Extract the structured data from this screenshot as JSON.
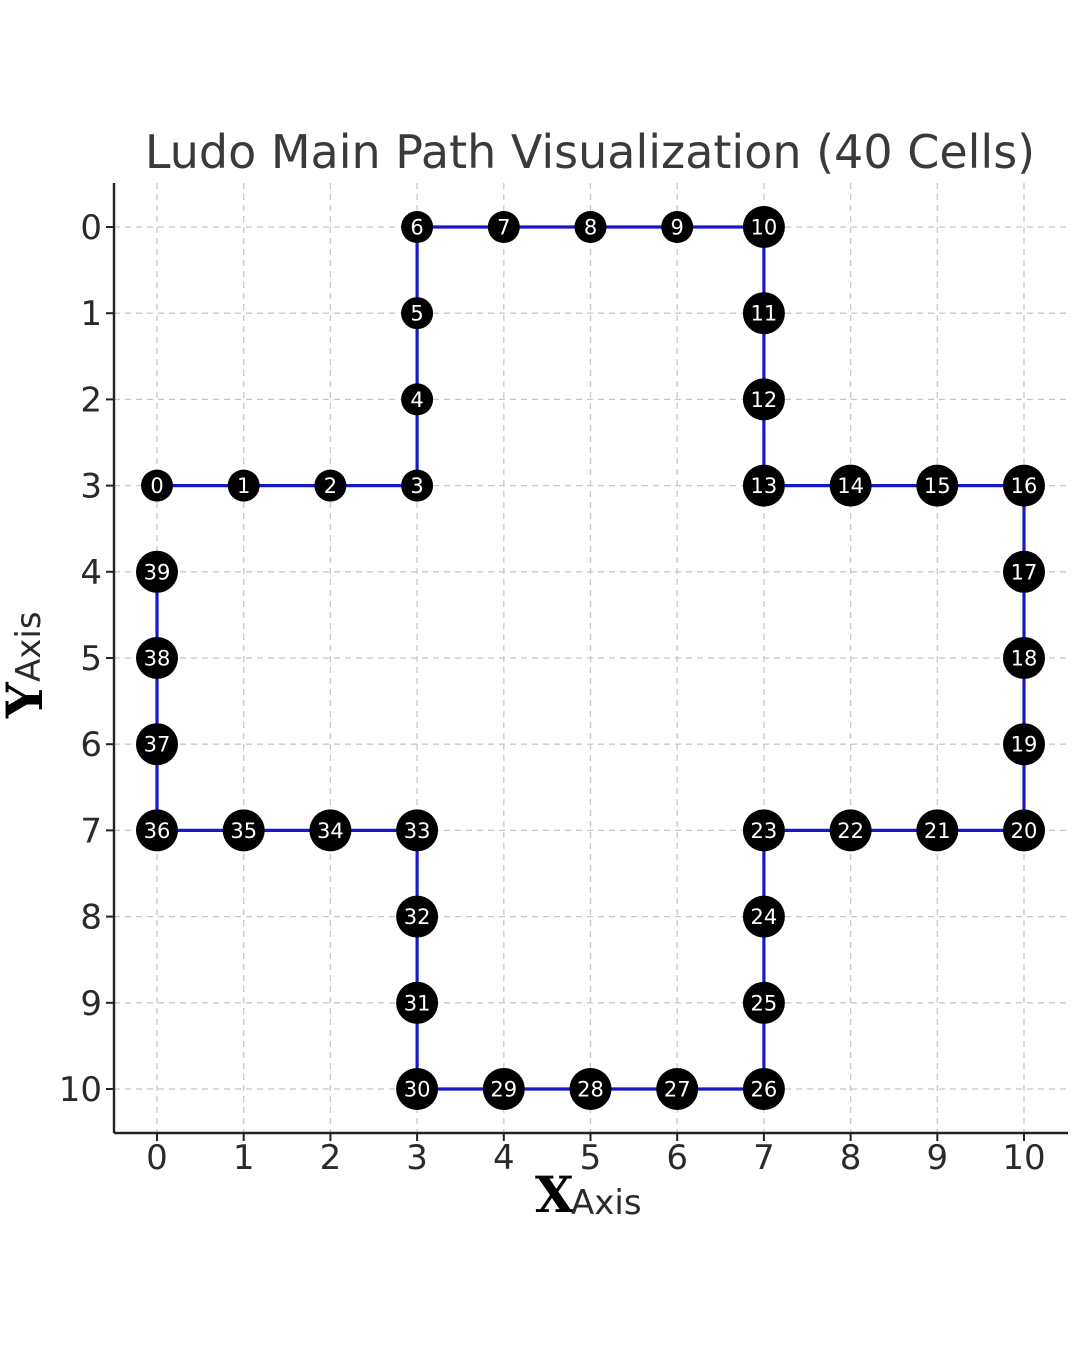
{
  "chart_data": {
    "type": "scatter",
    "title": "Ludo Main Path Visualization (40 Cells)",
    "xlabel": {
      "big": "X",
      "small": "Axis"
    },
    "ylabel": {
      "big": "Y",
      "small": "Axis"
    },
    "x_ticks": [
      0,
      1,
      2,
      3,
      4,
      5,
      6,
      7,
      8,
      9,
      10
    ],
    "y_ticks": [
      0,
      1,
      2,
      3,
      4,
      5,
      6,
      7,
      8,
      9,
      10
    ],
    "xlim": [
      -0.5,
      10.5
    ],
    "ylim": [
      -0.5,
      10.5
    ],
    "y_inverted": true,
    "grid": true,
    "colors": {
      "line": "#1818c8",
      "marker": "#000000",
      "marker_label": "#ffffff"
    },
    "points": [
      {
        "label": "0",
        "x": 0,
        "y": 3
      },
      {
        "label": "1",
        "x": 1,
        "y": 3
      },
      {
        "label": "2",
        "x": 2,
        "y": 3
      },
      {
        "label": "3",
        "x": 3,
        "y": 3
      },
      {
        "label": "4",
        "x": 3,
        "y": 2
      },
      {
        "label": "5",
        "x": 3,
        "y": 1
      },
      {
        "label": "6",
        "x": 3,
        "y": 0
      },
      {
        "label": "7",
        "x": 4,
        "y": 0
      },
      {
        "label": "8",
        "x": 5,
        "y": 0
      },
      {
        "label": "9",
        "x": 6,
        "y": 0
      },
      {
        "label": "10",
        "x": 7,
        "y": 0
      },
      {
        "label": "11",
        "x": 7,
        "y": 1
      },
      {
        "label": "12",
        "x": 7,
        "y": 2
      },
      {
        "label": "13",
        "x": 7,
        "y": 3
      },
      {
        "label": "14",
        "x": 8,
        "y": 3
      },
      {
        "label": "15",
        "x": 9,
        "y": 3
      },
      {
        "label": "16",
        "x": 10,
        "y": 3
      },
      {
        "label": "17",
        "x": 10,
        "y": 4
      },
      {
        "label": "18",
        "x": 10,
        "y": 5
      },
      {
        "label": "19",
        "x": 10,
        "y": 6
      },
      {
        "label": "20",
        "x": 10,
        "y": 7
      },
      {
        "label": "21",
        "x": 9,
        "y": 7
      },
      {
        "label": "22",
        "x": 8,
        "y": 7
      },
      {
        "label": "23",
        "x": 7,
        "y": 7
      },
      {
        "label": "24",
        "x": 7,
        "y": 8
      },
      {
        "label": "25",
        "x": 7,
        "y": 9
      },
      {
        "label": "26",
        "x": 7,
        "y": 10
      },
      {
        "label": "27",
        "x": 6,
        "y": 10
      },
      {
        "label": "28",
        "x": 5,
        "y": 10
      },
      {
        "label": "29",
        "x": 4,
        "y": 10
      },
      {
        "label": "30",
        "x": 3,
        "y": 10
      },
      {
        "label": "31",
        "x": 3,
        "y": 9
      },
      {
        "label": "32",
        "x": 3,
        "y": 8
      },
      {
        "label": "33",
        "x": 3,
        "y": 7
      },
      {
        "label": "34",
        "x": 2,
        "y": 7
      },
      {
        "label": "35",
        "x": 1,
        "y": 7
      },
      {
        "label": "36",
        "x": 0,
        "y": 7
      },
      {
        "label": "37",
        "x": 0,
        "y": 6
      },
      {
        "label": "38",
        "x": 0,
        "y": 5
      },
      {
        "label": "39",
        "x": 0,
        "y": 4
      }
    ]
  }
}
